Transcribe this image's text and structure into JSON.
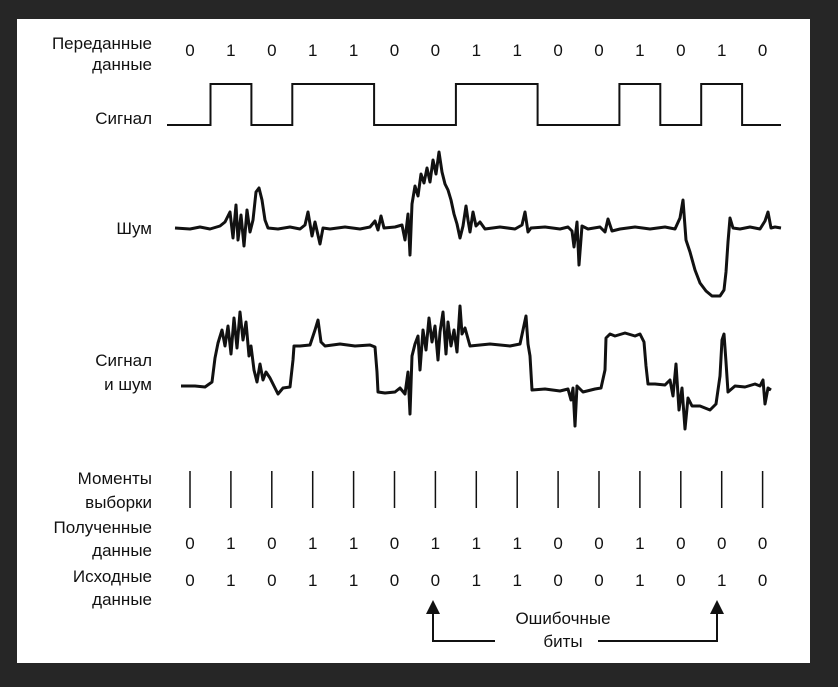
{
  "labels": {
    "transmitted": [
      "Переданные",
      "данные"
    ],
    "signal": "Сигнал",
    "noise": "Шум",
    "signal_noise": [
      "Сигнал",
      "и шум"
    ],
    "sampling": [
      "Моменты",
      "выборки"
    ],
    "received": [
      "Полученные",
      "данные"
    ],
    "original": [
      "Исходные",
      "данные"
    ],
    "error_bits": [
      "Ошибочные",
      "биты"
    ]
  },
  "data": {
    "transmitted_bits": [
      0,
      1,
      0,
      1,
      1,
      0,
      0,
      1,
      1,
      0,
      0,
      1,
      0,
      1,
      0
    ],
    "received_bits": [
      0,
      1,
      0,
      1,
      1,
      0,
      1,
      1,
      1,
      0,
      0,
      1,
      0,
      0,
      0
    ],
    "original_bits": [
      0,
      1,
      0,
      1,
      1,
      0,
      0,
      1,
      1,
      0,
      0,
      1,
      0,
      1,
      0
    ],
    "error_positions": [
      6,
      13
    ]
  },
  "colors": {
    "background": "#262626",
    "panel": "#ffffff",
    "ink": "#111111"
  }
}
